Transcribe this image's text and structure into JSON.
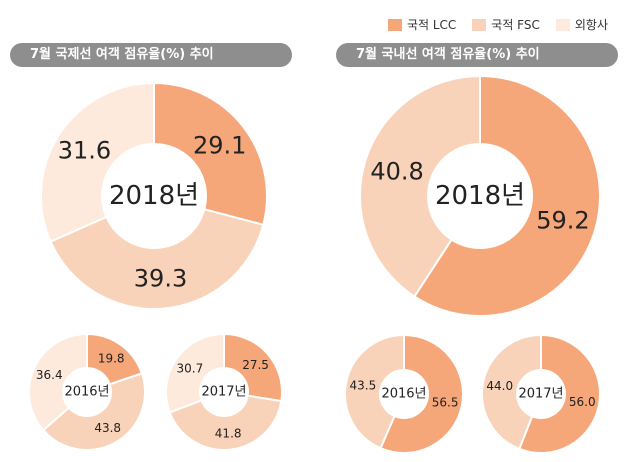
{
  "legend": [
    {
      "label": "국적 LCC",
      "color": "#f5a77a"
    },
    {
      "label": "국적 FSC",
      "color": "#f9d3b9"
    },
    {
      "label": "외항사",
      "color": "#fdeadd"
    }
  ],
  "banners": {
    "left": "7월 국제선 여객 점유율(%) 추이",
    "right": "7월 국내선 여객 점유율(%) 추이"
  },
  "chart_data": [
    {
      "type": "pie",
      "group": "국제선",
      "title": "2018년",
      "categories": [
        "국적 LCC",
        "국적 FSC",
        "외항사"
      ],
      "values": [
        29.1,
        39.3,
        31.6
      ]
    },
    {
      "type": "pie",
      "group": "국제선",
      "title": "2016년",
      "categories": [
        "국적 LCC",
        "국적 FSC",
        "외항사"
      ],
      "values": [
        19.8,
        43.8,
        36.4
      ]
    },
    {
      "type": "pie",
      "group": "국제선",
      "title": "2017년",
      "categories": [
        "국적 LCC",
        "국적 FSC",
        "외항사"
      ],
      "values": [
        27.5,
        41.8,
        30.7
      ]
    },
    {
      "type": "pie",
      "group": "국내선",
      "title": "2018년",
      "categories": [
        "국적 LCC",
        "국적 FSC"
      ],
      "values": [
        59.2,
        40.8
      ]
    },
    {
      "type": "pie",
      "group": "국내선",
      "title": "2016년",
      "categories": [
        "국적 LCC",
        "국적 FSC"
      ],
      "values": [
        56.5,
        43.5
      ]
    },
    {
      "type": "pie",
      "group": "국내선",
      "title": "2017년",
      "categories": [
        "국적 LCC",
        "국적 FSC"
      ],
      "values": [
        56.0,
        44.0
      ]
    }
  ]
}
